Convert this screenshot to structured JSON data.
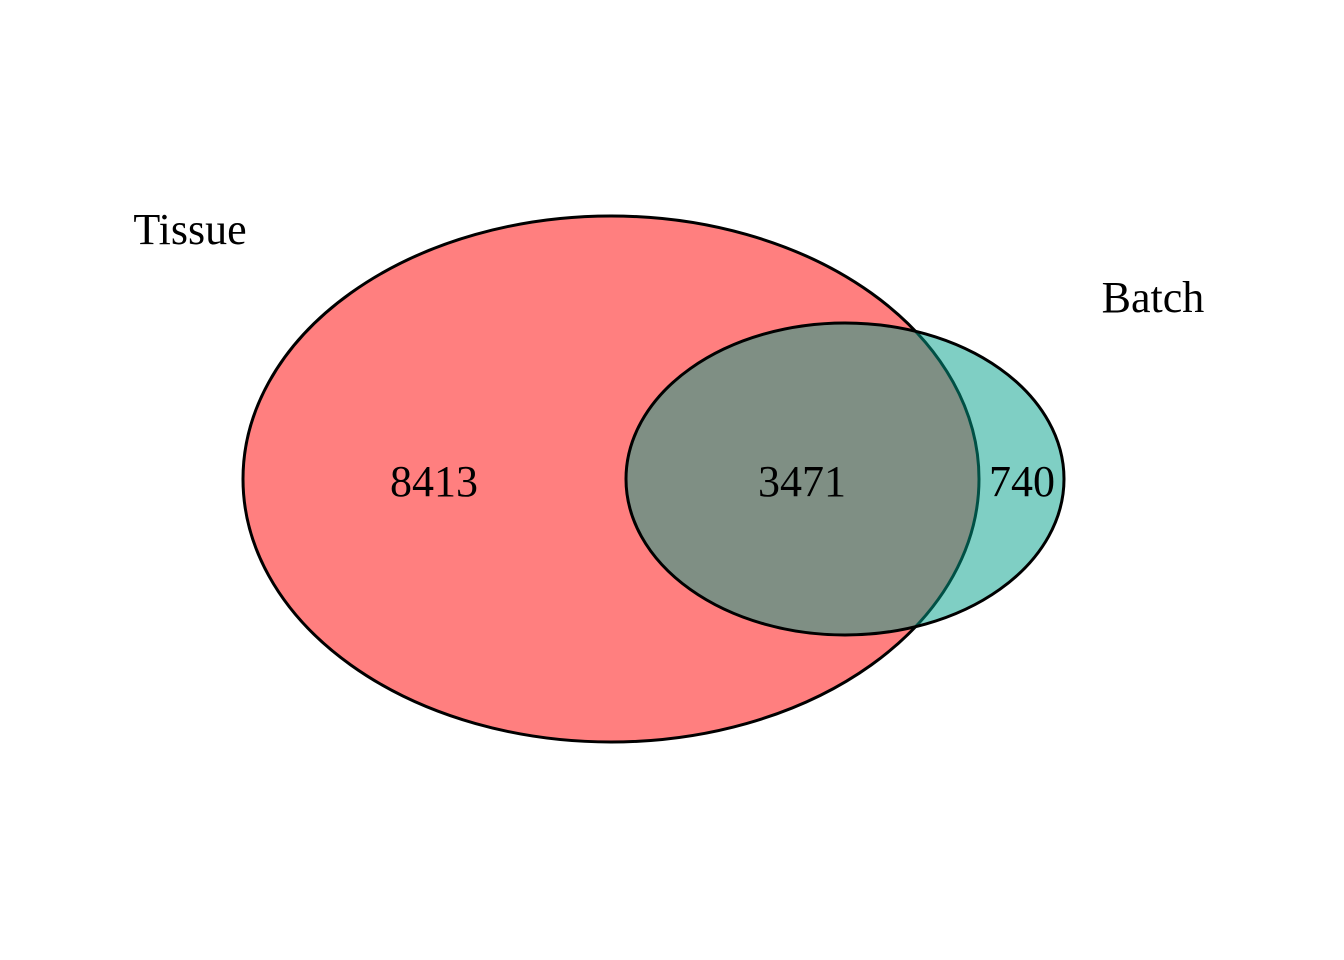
{
  "sets": [
    {
      "name": "Tissue",
      "color": "#FF0000",
      "opacity": 0.5
    },
    {
      "name": "Batch",
      "color": "#00A08A",
      "opacity": 0.5
    }
  ],
  "counts": {
    "tissue_only": "8413",
    "intersection": "3471",
    "batch_only": "740"
  },
  "colors": {
    "outline": "#000000",
    "background": "#FFFFFF"
  }
}
